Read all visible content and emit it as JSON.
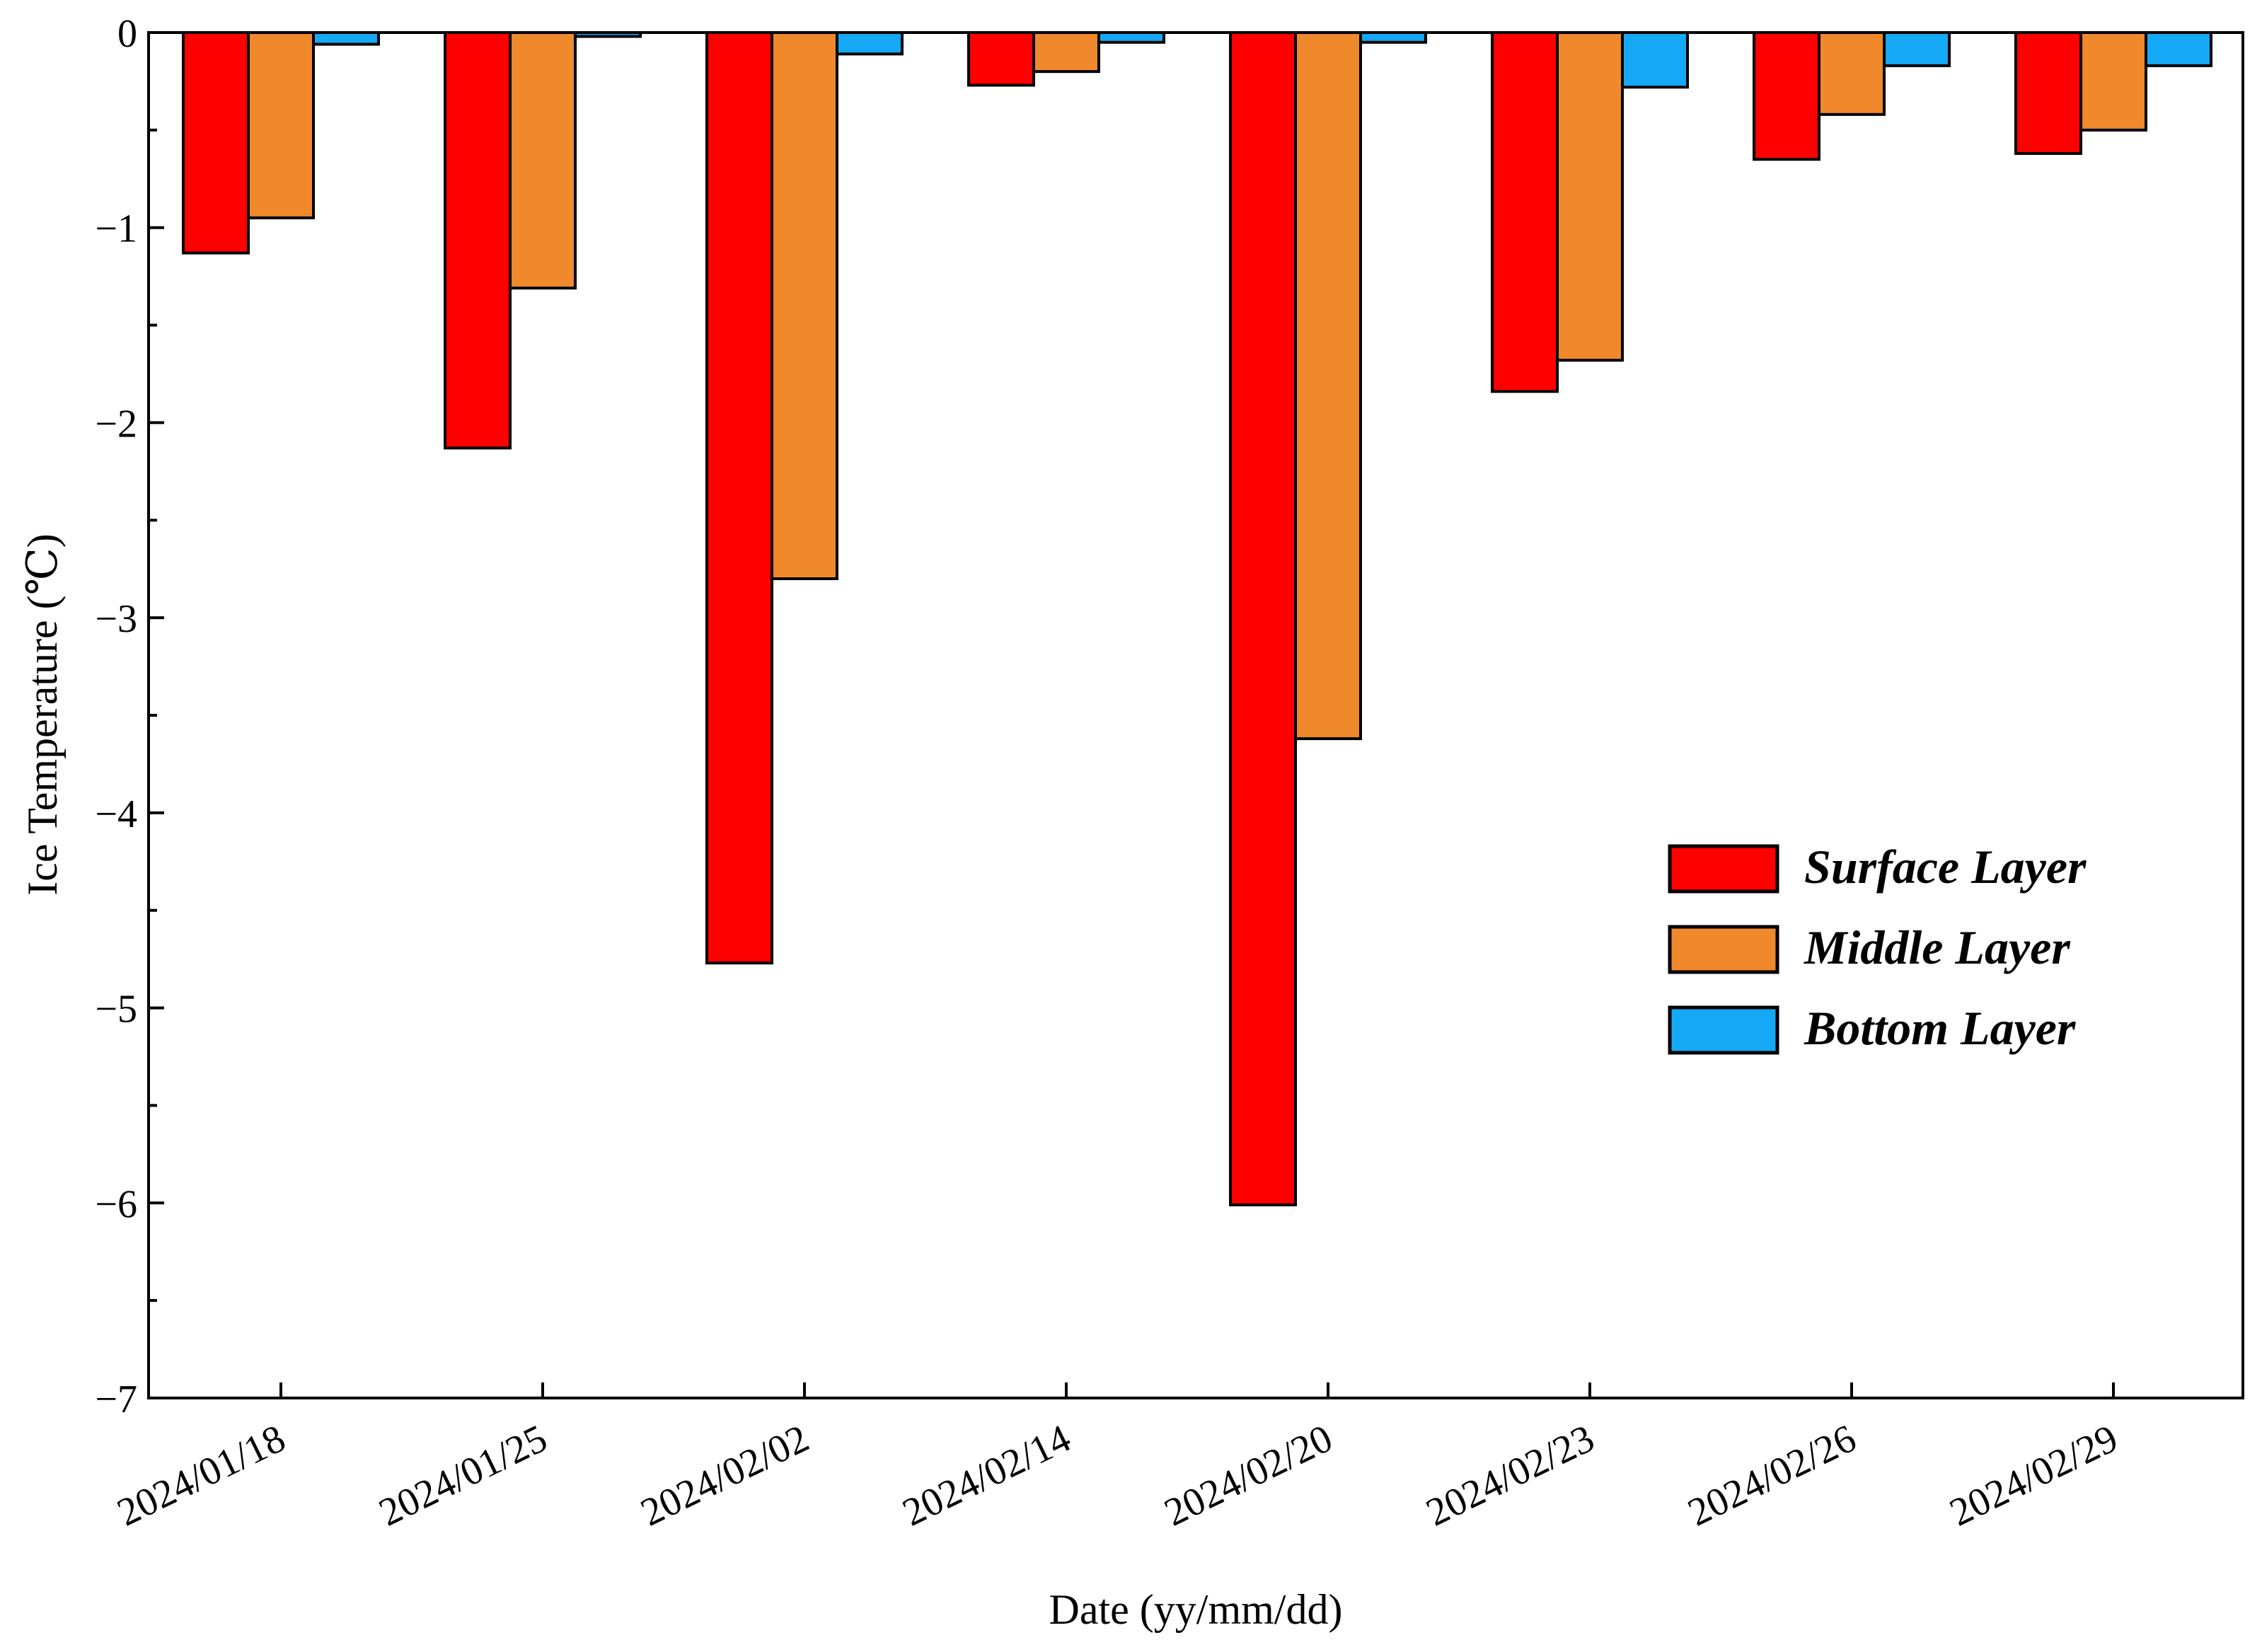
{
  "chart_data": {
    "type": "bar",
    "title": "",
    "xlabel": "Date  (yy/mm/dd)",
    "ylabel": "Ice Temperature (℃)",
    "ylim": [
      -7,
      0
    ],
    "yticks": [
      0,
      -1,
      -2,
      -3,
      -4,
      -5,
      -6,
      -7
    ],
    "ytick_labels": [
      "0",
      "−1",
      "−2",
      "−3",
      "−4",
      "−5",
      "−6",
      "−7"
    ],
    "categories": [
      "2024/01/18",
      "2024/01/25",
      "2024/02/02",
      "2024/02/14",
      "2024/02/20",
      "2024/02/23",
      "2024/02/26",
      "2024/02/29"
    ],
    "series": [
      {
        "name": "Surface  Layer",
        "color": "#ff0000",
        "values": [
          -1.13,
          -2.13,
          -4.77,
          -0.27,
          -6.01,
          -1.84,
          -0.65,
          -0.62
        ]
      },
      {
        "name": "Middle  Layer",
        "color": "#f0882c",
        "values": [
          -0.95,
          -1.31,
          -2.8,
          -0.2,
          -3.62,
          -1.68,
          -0.42,
          -0.5
        ]
      },
      {
        "name": "Bottom Layer",
        "color": "#14a8f5",
        "values": [
          -0.06,
          -0.02,
          -0.11,
          -0.05,
          -0.05,
          -0.28,
          -0.17,
          -0.17
        ]
      }
    ],
    "legend_position": "right-middle",
    "grid": false
  }
}
